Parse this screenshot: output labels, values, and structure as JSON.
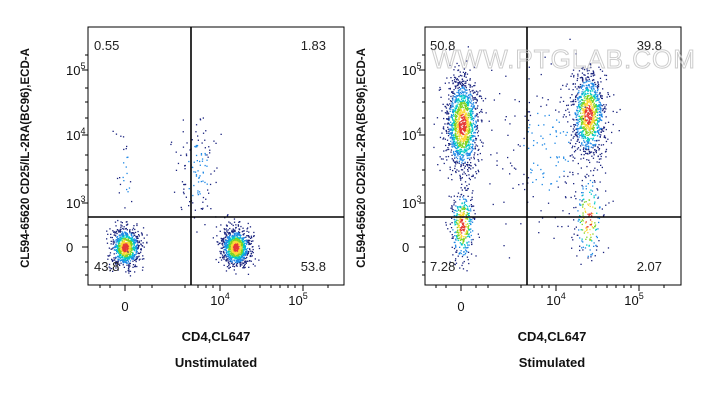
{
  "watermark": "WWW.PTGLAB.COM",
  "colors": {
    "density_low": "#1a237e",
    "density_mid1": "#1e88e5",
    "density_mid2": "#00c8c8",
    "density_mid3": "#7ed321",
    "density_high": "#fdd835",
    "density_peak": "#e53935",
    "gate_line": "#000000"
  },
  "chart_data": [
    {
      "type": "scatter",
      "title": "Unstimulated",
      "xlabel": "CD4,CL647",
      "ylabel": "CL594-65620 CD25/IL-2RA(BC96),ECD-A",
      "x_scale": "biexponential",
      "y_scale": "biexponential",
      "x_ticks": [
        "0",
        "10^4",
        "10^5"
      ],
      "y_ticks": [
        "0",
        "10^3",
        "10^4",
        "10^5"
      ],
      "gates": {
        "x": 5000,
        "y": 600
      },
      "quadrants": {
        "top_left": "0.55",
        "top_right": "1.83",
        "bottom_left": "43.8",
        "bottom_right": "53.8"
      },
      "populations": [
        {
          "name": "CD4- CD25-",
          "center": [
            0,
            0
          ],
          "percent": 43.8
        },
        {
          "name": "CD4+ CD25-",
          "center": [
            20000,
            0
          ],
          "percent": 53.8
        },
        {
          "name": "CD4+ CD25+",
          "center": [
            20000,
            3000
          ],
          "percent": 1.83
        },
        {
          "name": "CD4- CD25+",
          "center": [
            0,
            2000
          ],
          "percent": 0.55
        }
      ]
    },
    {
      "type": "scatter",
      "title": "Stimulated",
      "xlabel": "CD4,CL647",
      "ylabel": "CL594-65620 CD25/IL-2RA(BC96),ECD-A",
      "x_scale": "biexponential",
      "y_scale": "biexponential",
      "x_ticks": [
        "0",
        "10^4",
        "10^5"
      ],
      "y_ticks": [
        "0",
        "10^3",
        "10^4",
        "10^5"
      ],
      "gates": {
        "x": 5000,
        "y": 600
      },
      "quadrants": {
        "top_left": "50.8",
        "top_right": "39.8",
        "bottom_left": "7.28",
        "bottom_right": "2.07"
      },
      "populations": [
        {
          "name": "CD4- CD25+",
          "center": [
            0,
            15000
          ],
          "percent": 50.8
        },
        {
          "name": "CD4+ CD25+",
          "center": [
            40000,
            20000
          ],
          "percent": 39.8
        },
        {
          "name": "CD4- CD25-",
          "center": [
            0,
            0
          ],
          "percent": 7.28
        },
        {
          "name": "CD4+ CD25-",
          "center": [
            40000,
            200
          ],
          "percent": 2.07
        }
      ]
    }
  ]
}
